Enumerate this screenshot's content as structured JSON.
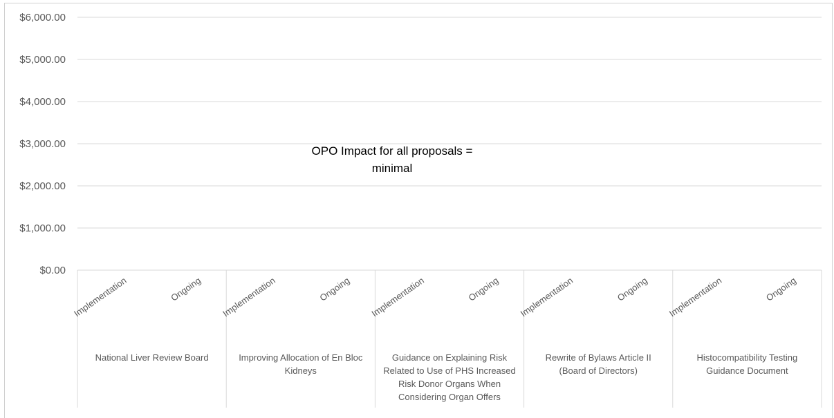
{
  "chart_data": {
    "type": "bar",
    "title": "",
    "xlabel": "",
    "ylabel": "",
    "ylim": [
      0,
      6000
    ],
    "yticks": [
      "$0.00",
      "$1,000.00",
      "$2,000.00",
      "$3,000.00",
      "$4,000.00",
      "$5,000.00",
      "$6,000.00"
    ],
    "grid": true,
    "legend": "none",
    "groups": [
      {
        "label": [
          "National Liver Review Board"
        ]
      },
      {
        "label": [
          "Improving Allocation of En Bloc",
          "Kidneys"
        ]
      },
      {
        "label": [
          "Guidance on Explaining Risk",
          "Related to Use of PHS Increased",
          "Risk Donor Organs When",
          "Considering Organ Offers"
        ]
      },
      {
        "label": [
          "Rewrite of Bylaws Article II",
          "(Board of Directors)"
        ]
      },
      {
        "label": [
          "Histocompatibility Testing",
          "Guidance Document"
        ]
      }
    ],
    "subcategories": [
      "Implementation",
      "Ongoing"
    ],
    "series": [
      {
        "values": [
          0,
          0,
          0,
          0,
          0,
          0,
          0,
          0,
          0,
          0
        ]
      }
    ],
    "annotation": [
      "OPO Impact for all proposals =",
      "minimal"
    ],
    "colors": {
      "grid": "#d9d9d9",
      "axis": "#d9d9d9",
      "text": "#595959"
    }
  }
}
